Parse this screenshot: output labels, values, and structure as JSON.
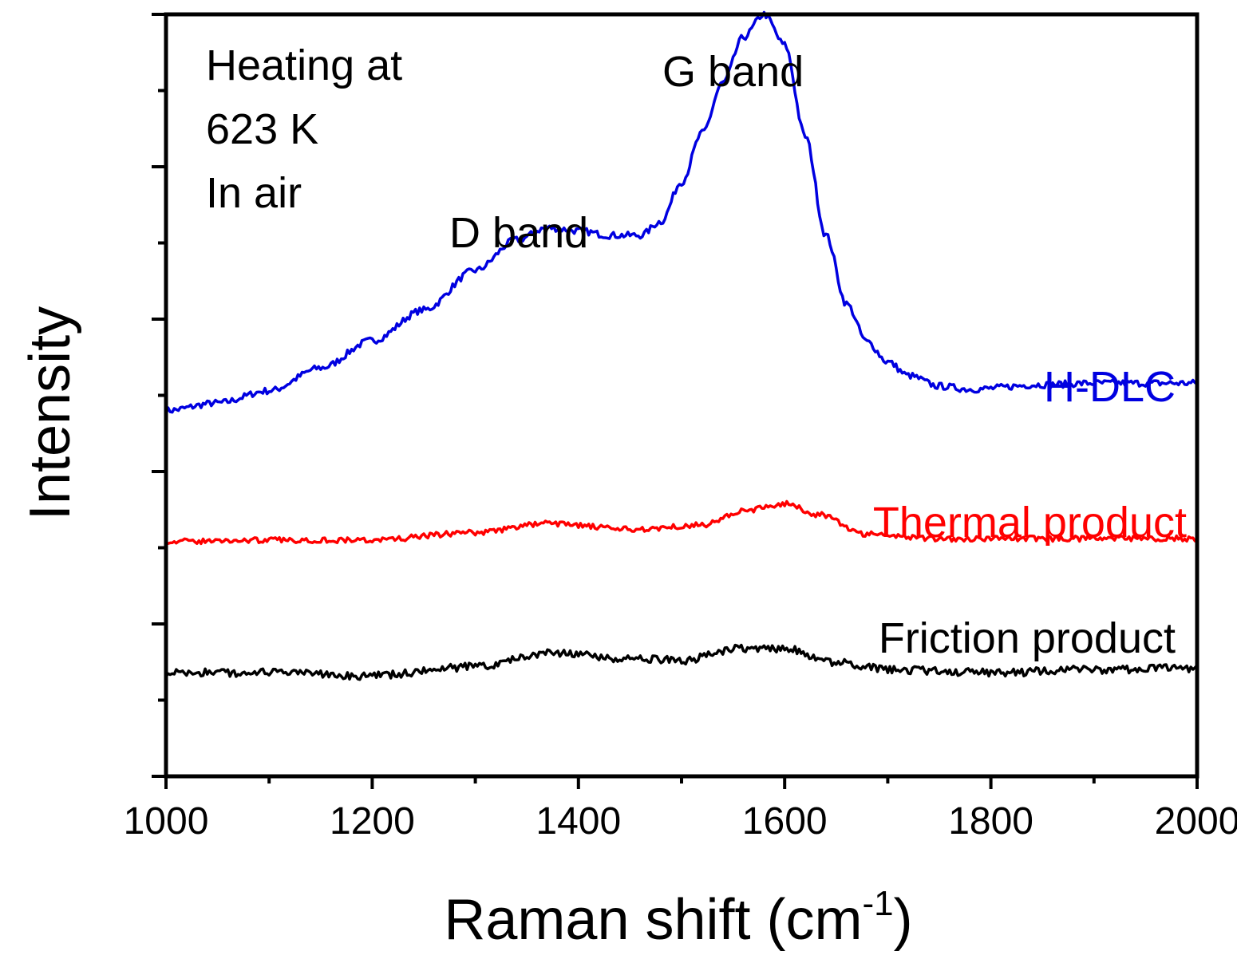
{
  "chart_data": {
    "type": "line",
    "title": "",
    "xlabel": "Raman shift (cm",
    "xlabel_superscript": "-1",
    "xlabel_close": ")",
    "ylabel": "Intensity",
    "xlim": [
      1000,
      2000
    ],
    "ylim": [
      0,
      5
    ],
    "x_ticks": [
      "1000",
      "1200",
      "1400",
      "1600",
      "1800",
      "2000"
    ],
    "annotations": {
      "condition_lines": [
        "Heating at",
        "623 K",
        "In air"
      ],
      "d_band": "D band",
      "g_band": "G band"
    },
    "series": [
      {
        "name": "H-DLC",
        "color": "#0000e0",
        "noise": 0.022,
        "x": [
          1000,
          1050,
          1100,
          1150,
          1200,
          1250,
          1300,
          1340,
          1370,
          1400,
          1430,
          1460,
          1480,
          1500,
          1520,
          1540,
          1560,
          1580,
          1600,
          1620,
          1640,
          1660,
          1680,
          1700,
          1720,
          1750,
          1780,
          1850,
          1900,
          1950,
          2000
        ],
        "y": [
          2.4,
          2.45,
          2.53,
          2.68,
          2.86,
          3.06,
          3.32,
          3.52,
          3.6,
          3.58,
          3.55,
          3.55,
          3.64,
          3.9,
          4.22,
          4.55,
          4.85,
          5.0,
          4.8,
          4.2,
          3.55,
          3.1,
          2.85,
          2.72,
          2.63,
          2.56,
          2.54,
          2.57,
          2.58,
          2.58,
          2.58
        ]
      },
      {
        "name": "Thermal product",
        "color": "#ff0000",
        "noise": 0.018,
        "x": [
          1000,
          1100,
          1200,
          1300,
          1370,
          1450,
          1520,
          1560,
          1600,
          1630,
          1680,
          1750,
          1850,
          2000
        ],
        "y": [
          1.54,
          1.55,
          1.55,
          1.6,
          1.66,
          1.62,
          1.65,
          1.74,
          1.79,
          1.72,
          1.59,
          1.56,
          1.56,
          1.56
        ]
      },
      {
        "name": "Friction product",
        "color": "#000000",
        "noise": 0.026,
        "x": [
          1000,
          1100,
          1200,
          1300,
          1370,
          1450,
          1500,
          1560,
          1600,
          1650,
          1700,
          1800,
          1900,
          2000
        ],
        "y": [
          0.68,
          0.68,
          0.66,
          0.72,
          0.81,
          0.77,
          0.76,
          0.84,
          0.84,
          0.75,
          0.7,
          0.68,
          0.7,
          0.71
        ]
      }
    ]
  }
}
